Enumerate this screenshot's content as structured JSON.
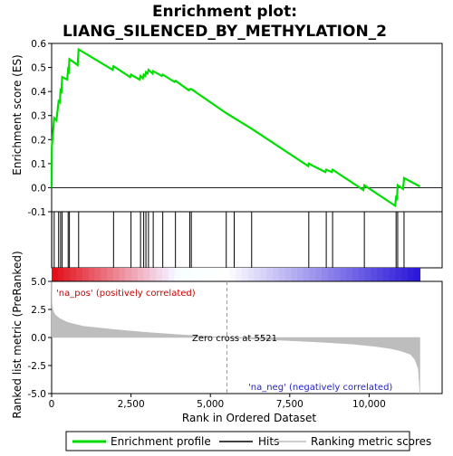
{
  "chart_data": {
    "type": "line",
    "title_line1": "Enrichment plot:",
    "title_line2": "LIANG_SILENCED_BY_METHYLATION_2",
    "xlabel": "Rank in Ordered Dataset",
    "ylabel_top": "Enrichment score (ES)",
    "ylabel_bottom": "Ranked list metric (PreRanked)",
    "xlim": [
      0,
      12300
    ],
    "es_ylim": [
      -0.1,
      0.6
    ],
    "metric_ylim": [
      -5,
      5
    ],
    "x_ticks": [
      0,
      2500,
      5000,
      7500,
      10000
    ],
    "x_tick_labels": [
      "0",
      "2,500",
      "5,000",
      "7,500",
      "10,000"
    ],
    "es_ticks": [
      -0.1,
      0.0,
      0.1,
      0.2,
      0.3,
      0.4,
      0.5,
      0.6
    ],
    "es_tick_labels": [
      "-0.1",
      "0.0",
      "0.1",
      "0.2",
      "0.3",
      "0.4",
      "0.5",
      "0.6"
    ],
    "metric_ticks": [
      -5.0,
      -2.5,
      0.0,
      2.5,
      5.0
    ],
    "metric_tick_labels": [
      "-5.0",
      "-2.5",
      "0.0",
      "2.5",
      "5.0"
    ],
    "zero_cross": 5521,
    "zero_cross_label": "Zero cross at 5521",
    "pos_label": "'na_pos' (positively correlated)",
    "neg_label": "'na_neg' (negatively correlated)",
    "legend": [
      "Enrichment profile",
      "Hits",
      "Ranking metric scores"
    ],
    "hits": [
      5,
      80,
      220,
      280,
      330,
      520,
      560,
      850,
      1950,
      2500,
      2800,
      2900,
      2970,
      3050,
      3200,
      3500,
      3900,
      4350,
      4400,
      5500,
      5750,
      6300,
      8100,
      8650,
      8850,
      9850,
      10850,
      10900,
      11100
    ],
    "es_profile": [
      [
        0,
        0.0
      ],
      [
        5,
        0.17
      ],
      [
        80,
        0.29
      ],
      [
        150,
        0.28
      ],
      [
        220,
        0.36
      ],
      [
        260,
        0.355
      ],
      [
        280,
        0.405
      ],
      [
        310,
        0.4
      ],
      [
        330,
        0.46
      ],
      [
        490,
        0.45
      ],
      [
        520,
        0.49
      ],
      [
        540,
        0.485
      ],
      [
        560,
        0.535
      ],
      [
        820,
        0.51
      ],
      [
        850,
        0.575
      ],
      [
        1920,
        0.49
      ],
      [
        1950,
        0.505
      ],
      [
        2470,
        0.46
      ],
      [
        2500,
        0.47
      ],
      [
        2770,
        0.45
      ],
      [
        2800,
        0.465
      ],
      [
        2870,
        0.455
      ],
      [
        2900,
        0.47
      ],
      [
        2950,
        0.465
      ],
      [
        2970,
        0.48
      ],
      [
        3020,
        0.475
      ],
      [
        3050,
        0.49
      ],
      [
        3180,
        0.475
      ],
      [
        3200,
        0.485
      ],
      [
        3470,
        0.465
      ],
      [
        3500,
        0.47
      ],
      [
        3870,
        0.44
      ],
      [
        3900,
        0.445
      ],
      [
        4320,
        0.405
      ],
      [
        4350,
        0.41
      ],
      [
        4400,
        0.41
      ],
      [
        5500,
        0.31
      ],
      [
        5750,
        0.29
      ],
      [
        6300,
        0.245
      ],
      [
        8080,
        0.09
      ],
      [
        8100,
        0.1
      ],
      [
        8620,
        0.065
      ],
      [
        8650,
        0.075
      ],
      [
        8820,
        0.065
      ],
      [
        8850,
        0.075
      ],
      [
        9820,
        -0.01
      ],
      [
        9850,
        0.01
      ],
      [
        10820,
        -0.075
      ],
      [
        10850,
        -0.04
      ],
      [
        10880,
        -0.045
      ],
      [
        10900,
        0.01
      ],
      [
        11070,
        -0.005
      ],
      [
        11100,
        0.04
      ],
      [
        11600,
        0.005
      ]
    ],
    "metric_profile": [
      [
        0,
        5.0
      ],
      [
        10,
        3.0
      ],
      [
        30,
        2.6
      ],
      [
        60,
        2.3
      ],
      [
        120,
        2.0
      ],
      [
        250,
        1.7
      ],
      [
        500,
        1.35
      ],
      [
        1000,
        1.0
      ],
      [
        2000,
        0.7
      ],
      [
        3000,
        0.45
      ],
      [
        4000,
        0.25
      ],
      [
        5000,
        0.08
      ],
      [
        5521,
        0.0
      ],
      [
        6500,
        -0.15
      ],
      [
        7500,
        -0.28
      ],
      [
        8500,
        -0.42
      ],
      [
        9500,
        -0.6
      ],
      [
        10200,
        -0.8
      ],
      [
        10700,
        -1.0
      ],
      [
        11000,
        -1.2
      ],
      [
        11300,
        -1.5
      ],
      [
        11450,
        -2.0
      ],
      [
        11550,
        -2.8
      ],
      [
        11600,
        -5.0
      ]
    ]
  }
}
